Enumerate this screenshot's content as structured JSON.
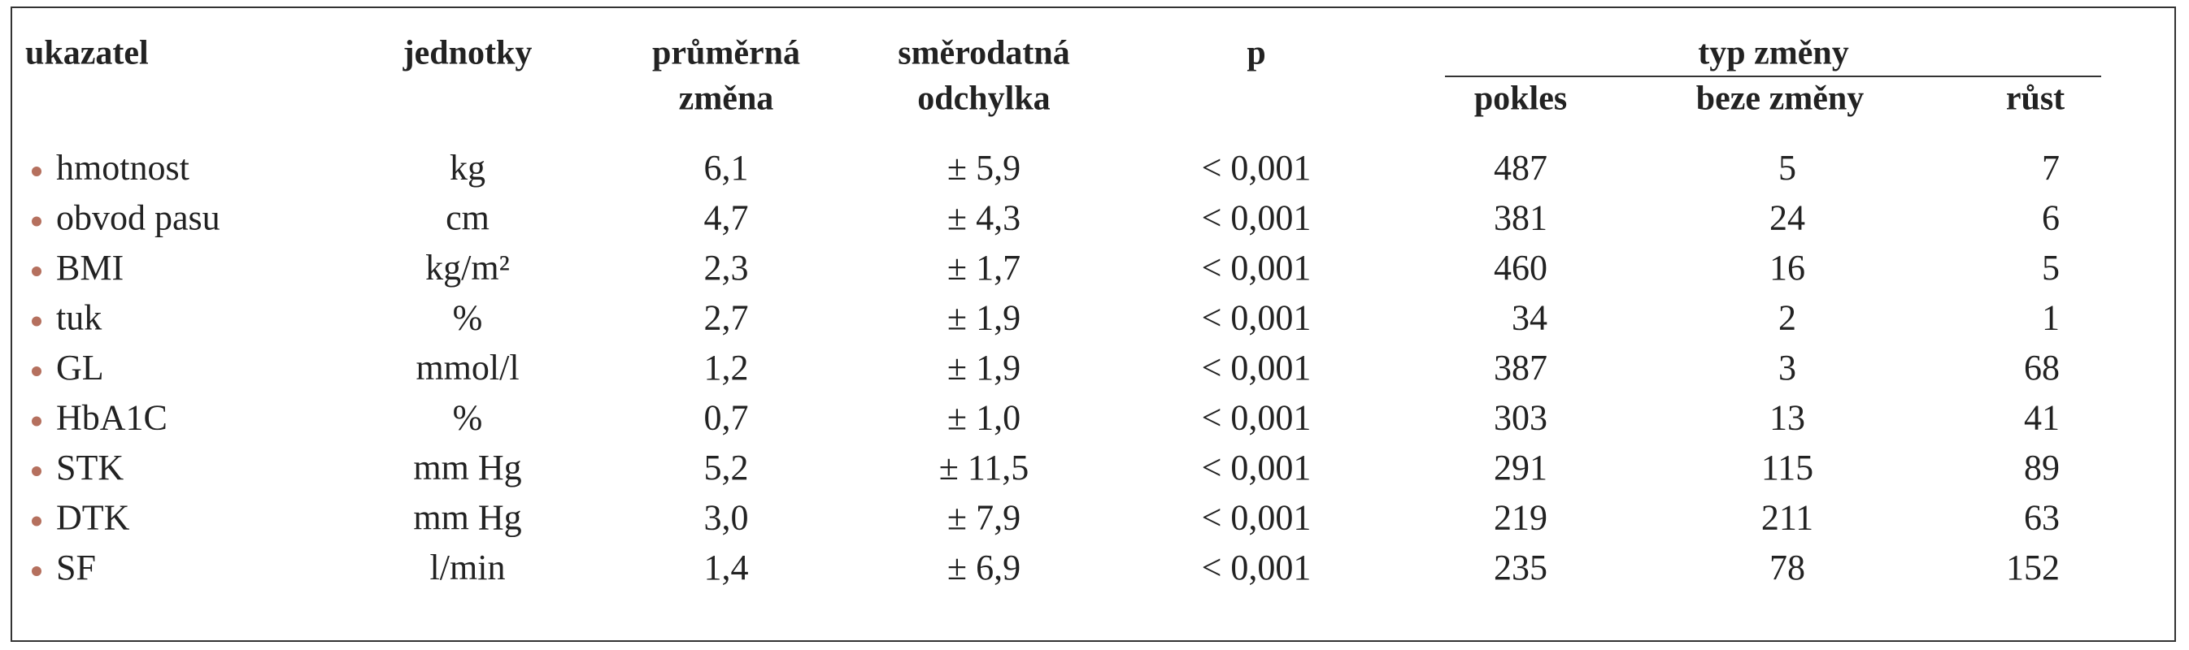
{
  "table": {
    "group_header": "typ změny",
    "columns": [
      [
        "ukazatel"
      ],
      [
        "jednotky"
      ],
      [
        "průměrná",
        "změna"
      ],
      [
        "směrodatná",
        "odchylka"
      ],
      [
        "p"
      ],
      [
        "pokles"
      ],
      [
        "beze změny"
      ],
      [
        "růst"
      ]
    ],
    "rows": [
      [
        "hmotnost",
        "kg",
        "6,1",
        "± 5,9",
        "< 0,001",
        "487",
        "5",
        "7"
      ],
      [
        "obvod pasu",
        "cm",
        "4,7",
        "± 4,3",
        "< 0,001",
        "381",
        "24",
        "6"
      ],
      [
        "BMI",
        "kg/m²",
        "2,3",
        "± 1,7",
        "< 0,001",
        "460",
        "16",
        "5"
      ],
      [
        "tuk",
        "%",
        "2,7",
        "± 1,9",
        "< 0,001",
        "34",
        "2",
        "1"
      ],
      [
        "GL",
        "mmol/l",
        "1,2",
        "± 1,9",
        "< 0,001",
        "387",
        "3",
        "68"
      ],
      [
        "HbA1C",
        "%",
        "0,7",
        "± 1,0",
        "< 0,001",
        "303",
        "13",
        "41"
      ],
      [
        "STK",
        "mm Hg",
        "5,2",
        "± 11,5",
        "< 0,001",
        "291",
        "115",
        "89"
      ],
      [
        "DTK",
        "mm Hg",
        "3,0",
        "± 7,9",
        "< 0,001",
        "219",
        "211",
        "63"
      ],
      [
        "SF",
        "l/min",
        "1,4",
        "± 6,9",
        "< 0,001",
        "235",
        "78",
        "152"
      ]
    ]
  }
}
